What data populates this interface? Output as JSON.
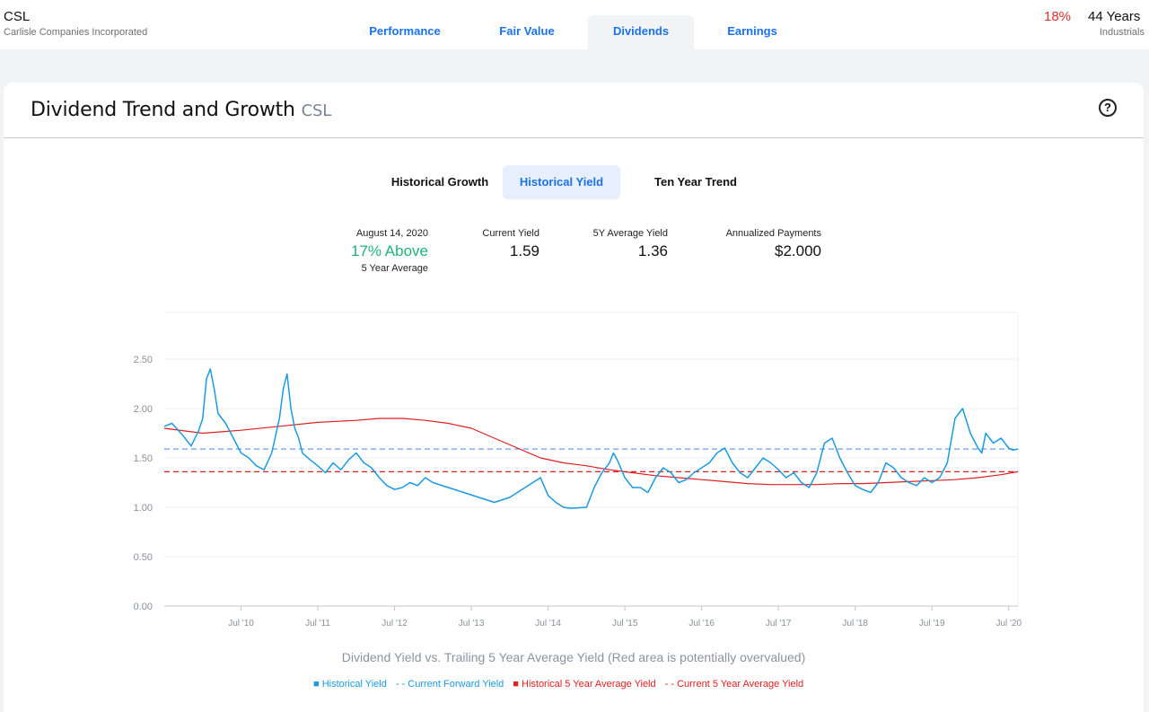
{
  "header": {
    "ticker": "CSL",
    "company": "Carlisle Companies Incorporated",
    "tabs": [
      {
        "label": "Performance"
      },
      {
        "label": "Fair Value"
      },
      {
        "label": "Dividends"
      },
      {
        "label": "Earnings"
      }
    ],
    "active_tab": "Dividends",
    "pct": "18%",
    "years": "44 Years",
    "sector": "Industrials"
  },
  "card": {
    "title": "Dividend Trend and Growth",
    "ticker": "CSL",
    "subtabs": [
      {
        "label": "Historical Growth"
      },
      {
        "label": "Historical Yield"
      },
      {
        "label": "Ten Year Trend"
      }
    ],
    "active_subtab": "Historical Yield"
  },
  "stats": {
    "date": "August 14, 2020",
    "relative": "17% Above",
    "relative_sub": "5 Year Average",
    "current_yield_label": "Current Yield",
    "current_yield": "1.59",
    "avg_yield_label": "5Y Average Yield",
    "avg_yield": "1.36",
    "annualized_label": "Annualized Payments",
    "annualized": "$2.000"
  },
  "chart_data": {
    "type": "line",
    "title": "Dividend Yield vs. Trailing 5 Year Average Yield (Red area is potentially overvalued)",
    "y_ticks": [
      "0.00",
      "0.50",
      "1.00",
      "1.50",
      "2.00",
      "2.50"
    ],
    "x_ticks": [
      "Jul '10",
      "Jul '11",
      "Jul '12",
      "Jul '13",
      "Jul '14",
      "Jul '15",
      "Jul '16",
      "Jul '17",
      "Jul '18",
      "Jul '19",
      "Jul '20"
    ],
    "ylim": [
      0,
      2.5
    ],
    "x_range": [
      2009.5,
      2020.62
    ],
    "current_forward_yield": 1.59,
    "current_5y_avg_yield": 1.36,
    "colors": {
      "historical": "#1a9be0",
      "forward": "#6f9cf2",
      "avg5y": "#e02020",
      "avg5y_current": "#e02020"
    },
    "series": [
      {
        "name": "Historical Yield",
        "x": [
          2009.5,
          2009.6,
          2009.75,
          2009.85,
          2009.95,
          2010.0,
          2010.05,
          2010.1,
          2010.15,
          2010.2,
          2010.3,
          2010.4,
          2010.5,
          2010.6,
          2010.7,
          2010.8,
          2010.9,
          2011.0,
          2011.05,
          2011.1,
          2011.15,
          2011.2,
          2011.25,
          2011.3,
          2011.4,
          2011.5,
          2011.6,
          2011.7,
          2011.8,
          2011.9,
          2012.0,
          2012.1,
          2012.2,
          2012.3,
          2012.4,
          2012.5,
          2012.6,
          2012.7,
          2012.8,
          2012.9,
          2013.0,
          2013.2,
          2013.4,
          2013.6,
          2013.8,
          2014.0,
          2014.2,
          2014.4,
          2014.5,
          2014.6,
          2014.7,
          2014.8,
          2015.0,
          2015.1,
          2015.2,
          2015.3,
          2015.35,
          2015.4,
          2015.5,
          2015.6,
          2015.7,
          2015.8,
          2015.9,
          2016.0,
          2016.1,
          2016.2,
          2016.3,
          2016.4,
          2016.5,
          2016.6,
          2016.7,
          2016.8,
          2016.9,
          2017.0,
          2017.1,
          2017.2,
          2017.3,
          2017.4,
          2017.5,
          2017.6,
          2017.7,
          2017.8,
          2017.9,
          2018.0,
          2018.1,
          2018.2,
          2018.3,
          2018.4,
          2018.5,
          2018.6,
          2018.7,
          2018.8,
          2018.9,
          2019.0,
          2019.1,
          2019.2,
          2019.3,
          2019.4,
          2019.5,
          2019.6,
          2019.7,
          2019.8,
          2019.9,
          2020.0,
          2020.1,
          2020.15,
          2020.2,
          2020.3,
          2020.4,
          2020.5,
          2020.55,
          2020.62
        ],
        "values": [
          1.82,
          1.85,
          1.72,
          1.62,
          1.78,
          1.9,
          2.3,
          2.4,
          2.2,
          1.95,
          1.85,
          1.7,
          1.55,
          1.5,
          1.42,
          1.38,
          1.55,
          1.9,
          2.2,
          2.35,
          2.0,
          1.8,
          1.7,
          1.55,
          1.48,
          1.42,
          1.35,
          1.45,
          1.38,
          1.48,
          1.55,
          1.45,
          1.4,
          1.3,
          1.22,
          1.18,
          1.2,
          1.25,
          1.22,
          1.3,
          1.25,
          1.2,
          1.15,
          1.1,
          1.05,
          1.1,
          1.2,
          1.3,
          1.12,
          1.05,
          1.0,
          0.99,
          1.0,
          1.2,
          1.35,
          1.45,
          1.55,
          1.48,
          1.3,
          1.2,
          1.2,
          1.15,
          1.3,
          1.4,
          1.35,
          1.25,
          1.28,
          1.35,
          1.4,
          1.45,
          1.55,
          1.6,
          1.45,
          1.35,
          1.3,
          1.4,
          1.5,
          1.45,
          1.38,
          1.3,
          1.35,
          1.25,
          1.2,
          1.35,
          1.65,
          1.7,
          1.5,
          1.35,
          1.22,
          1.18,
          1.15,
          1.25,
          1.45,
          1.4,
          1.3,
          1.25,
          1.22,
          1.3,
          1.25,
          1.3,
          1.45,
          1.9,
          2.0,
          1.75,
          1.6,
          1.55,
          1.75,
          1.65,
          1.7,
          1.6,
          1.58,
          1.59
        ]
      },
      {
        "name": "Historical 5 Year Average Yield",
        "x": [
          2009.5,
          2010.0,
          2010.5,
          2011.0,
          2011.5,
          2012.0,
          2012.3,
          2012.6,
          2012.9,
          2013.2,
          2013.5,
          2013.8,
          2014.1,
          2014.4,
          2014.7,
          2015.0,
          2015.3,
          2015.6,
          2015.9,
          2016.2,
          2016.5,
          2016.8,
          2017.1,
          2017.4,
          2017.7,
          2018.0,
          2018.3,
          2018.6,
          2018.9,
          2019.2,
          2019.5,
          2019.8,
          2020.1,
          2020.4,
          2020.62
        ],
        "values": [
          1.8,
          1.75,
          1.78,
          1.82,
          1.86,
          1.88,
          1.9,
          1.9,
          1.88,
          1.85,
          1.8,
          1.7,
          1.6,
          1.5,
          1.45,
          1.42,
          1.38,
          1.35,
          1.32,
          1.3,
          1.28,
          1.26,
          1.24,
          1.23,
          1.23,
          1.23,
          1.24,
          1.24,
          1.25,
          1.26,
          1.27,
          1.28,
          1.3,
          1.33,
          1.36
        ]
      }
    ]
  },
  "legend": {
    "historical": "Historical Yield",
    "forward": "Current Forward Yield",
    "avg5y": "Historical 5 Year Average Yield",
    "avg5y_current": "Current 5 Year Average Yield"
  }
}
